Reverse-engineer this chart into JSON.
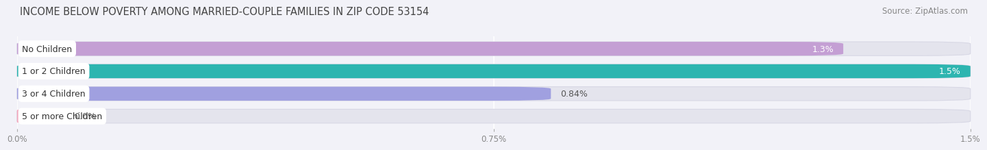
{
  "title": "INCOME BELOW POVERTY AMONG MARRIED-COUPLE FAMILIES IN ZIP CODE 53154",
  "source": "Source: ZipAtlas.com",
  "categories": [
    "No Children",
    "1 or 2 Children",
    "3 or 4 Children",
    "5 or more Children"
  ],
  "values": [
    1.3,
    1.5,
    0.84,
    0.0
  ],
  "bar_colors": [
    "#c49fd4",
    "#2db5b0",
    "#a0a0e0",
    "#f4a8be"
  ],
  "value_labels": [
    "1.3%",
    "1.5%",
    "0.84%",
    "0.0%"
  ],
  "value_label_colors": [
    "white",
    "white",
    "#555555",
    "#555555"
  ],
  "xlim_max": 1.5,
  "xticks": [
    0.0,
    0.75,
    1.5
  ],
  "xtick_labels": [
    "0.0%",
    "0.75%",
    "1.5%"
  ],
  "background_color": "#f2f2f8",
  "bar_bg_color": "#e4e4ed",
  "bar_bg_border": "#d8d8e5",
  "title_fontsize": 10.5,
  "source_fontsize": 8.5,
  "label_fontsize": 9,
  "value_fontsize": 9
}
